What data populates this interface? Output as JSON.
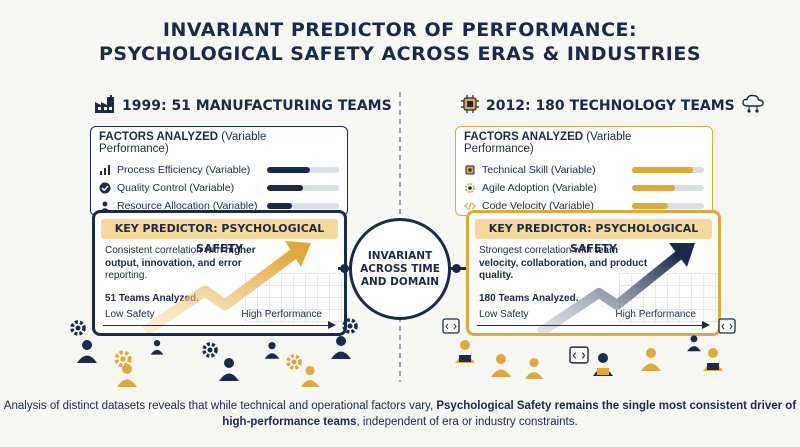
{
  "title": {
    "line1": "INVARIANT PREDICTOR OF PERFORMANCE:",
    "line2": "PSYCHOLOGICAL SAFETY ACROSS ERAS & INDUSTRIES"
  },
  "left": {
    "heading": "1999: 51 MANUFACTURING TEAMS",
    "heading_icon": "factory-icon",
    "factors_title": "FACTORS ANALYZED",
    "factors_note": "(Variable Performance)",
    "factors": [
      {
        "icon": "bar-chart-icon",
        "label": "Process Efficiency (Variable)",
        "level": 0.6
      },
      {
        "icon": "check-circle-icon",
        "label": "Quality Control (Variable)",
        "level": 0.5
      },
      {
        "icon": "person-box-icon",
        "label": "Resource Allocation (Variable)",
        "level": 0.35
      }
    ],
    "key_title": "KEY PREDICTOR: PSYCHOLOGICAL SAFETY",
    "key_desc_pre": "Consistent correlation with ",
    "key_desc_bold": "higher output, innovation, and error",
    "key_desc_post": " reporting.",
    "key_count": "51 Teams Analyzed.",
    "axis_low": "Low Safety",
    "axis_high": "High Performance"
  },
  "right": {
    "heading": "2012: 180 TECHNOLOGY TEAMS",
    "heading_icon": "chip-icon",
    "factors_title": "FACTORS ANALYZED",
    "factors_note": "(Variable Performance)",
    "factors": [
      {
        "icon": "chip-small-icon",
        "label": "Technical Skill (Variable)",
        "level": 0.85
      },
      {
        "icon": "gear-small-icon",
        "label": "Agile Adoption (Variable)",
        "level": 0.6
      },
      {
        "icon": "code-icon",
        "label": "Code Velocity (Variable)",
        "level": 0.5
      }
    ],
    "key_title": "KEY PREDICTOR: PSYCHOLOGICAL SAFETY",
    "key_desc_pre": "Strongest correlation with ",
    "key_desc_bold": "team velocity, collaboration, and product quality.",
    "key_desc_post": "",
    "key_count": "180 Teams Analyzed.",
    "axis_low": "Low Safety",
    "axis_high": "High Performance"
  },
  "center": {
    "line1": "INVARIANT",
    "line2": "ACROSS TIME",
    "line3": "AND DOMAIN"
  },
  "footer": {
    "pre": "Analysis of distinct datasets reveals that while technical and operational factors vary, ",
    "bold": "Psychological Safety remains the single most consistent driver of high-performance teams",
    "post": ", independent of era or industry constraints."
  },
  "colors": {
    "navy": "#1b2a4a",
    "gold": "#e0a83a",
    "light_gold": "#f5d89a"
  }
}
